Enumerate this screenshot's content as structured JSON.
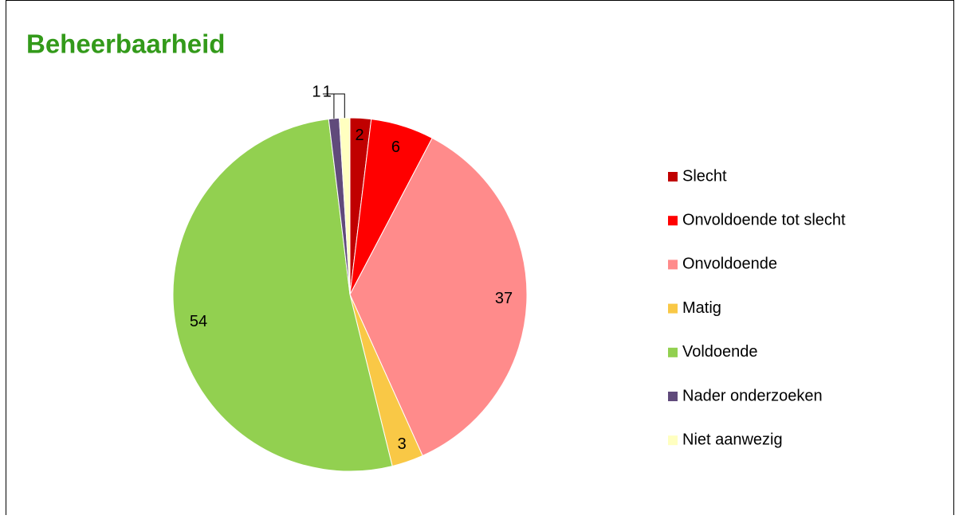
{
  "chart_data": {
    "type": "pie",
    "title": "Beheerbaarheid",
    "categories": [
      "Slecht",
      "Onvoldoende tot slecht",
      "Onvoldoende",
      "Matig",
      "Voldoende",
      "Nader onderzoeken",
      "Niet aanwezig"
    ],
    "values": [
      2,
      6,
      37,
      3,
      54,
      1,
      1
    ],
    "colors": [
      "#c00000",
      "#ff0000",
      "#ff8b8b",
      "#f9c846",
      "#92d050",
      "#604a7b",
      "#ffffc0"
    ],
    "legend": "right"
  }
}
